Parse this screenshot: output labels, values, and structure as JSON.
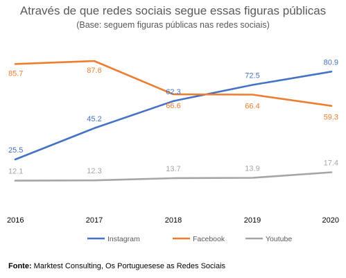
{
  "chart_data": {
    "type": "line",
    "title": "Através de que redes sociais segue essas figuras públicas",
    "subtitle": "(Base: seguem figuras públicas nas redes sociais)",
    "categories": [
      "2016",
      "2017",
      "2018",
      "2019",
      "2020"
    ],
    "series": [
      {
        "name": "Instagram",
        "color": "#4472C4",
        "values": [
          25.5,
          45.2,
          62.3,
          72.5,
          80.9
        ]
      },
      {
        "name": "Facebook",
        "color": "#ED7D31",
        "values": [
          85.7,
          87.6,
          66.6,
          66.4,
          59.3
        ]
      },
      {
        "name": "Youtube",
        "color": "#A5A5A5",
        "values": [
          12.1,
          12.3,
          13.7,
          13.9,
          17.4
        ]
      }
    ],
    "ylim": [
      0,
      100
    ],
    "grid": false,
    "legend": "bottom"
  },
  "source": {
    "label": "Fonte:",
    "text": "Marktest Consulting, Os Portuguesese as Redes Sociais"
  }
}
